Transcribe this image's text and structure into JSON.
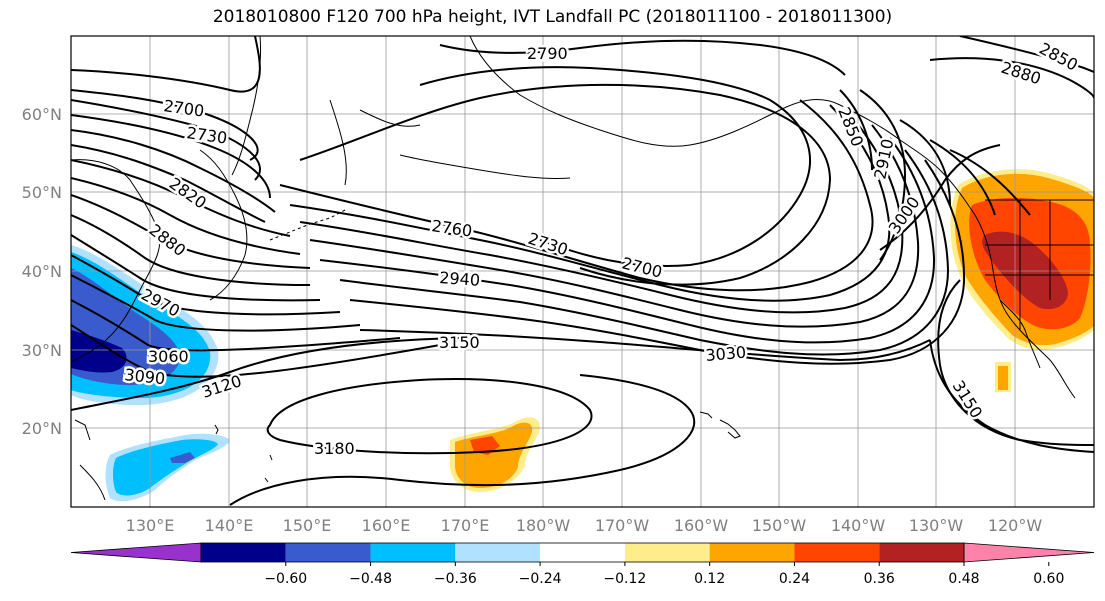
{
  "title": "2018010800 F120 700 hPa height, IVT Landfall PC (2018011100 - 2018011300)",
  "map": {
    "lat_ticks": [
      "60°N",
      "50°N",
      "40°N",
      "30°N",
      "20°N"
    ],
    "lon_ticks": [
      "130°E",
      "140°E",
      "150°E",
      "160°E",
      "170°E",
      "180°W",
      "170°W",
      "160°W",
      "150°W",
      "140°W",
      "130°W",
      "120°W"
    ]
  },
  "contour_labels": [
    {
      "id": "2790",
      "text": "2790"
    },
    {
      "id": "2880a",
      "text": "2880"
    },
    {
      "id": "2850a",
      "text": "2850"
    },
    {
      "id": "2700w",
      "text": "2700"
    },
    {
      "id": "2730w",
      "text": "2730"
    },
    {
      "id": "2820",
      "text": "2820"
    },
    {
      "id": "2880w",
      "text": "2880"
    },
    {
      "id": "2970",
      "text": "2970"
    },
    {
      "id": "3060",
      "text": "3060"
    },
    {
      "id": "3090",
      "text": "3090"
    },
    {
      "id": "3120",
      "text": "3120"
    },
    {
      "id": "2760",
      "text": "2760"
    },
    {
      "id": "2730c",
      "text": "2730"
    },
    {
      "id": "2700c",
      "text": "2700"
    },
    {
      "id": "2940",
      "text": "2940"
    },
    {
      "id": "3150c",
      "text": "3150"
    },
    {
      "id": "3030",
      "text": "3030"
    },
    {
      "id": "3180",
      "text": "3180"
    },
    {
      "id": "2850e",
      "text": "2850"
    },
    {
      "id": "2910",
      "text": "2910"
    },
    {
      "id": "3000",
      "text": "3000"
    },
    {
      "id": "3150e",
      "text": "3150"
    }
  ],
  "colorbar": {
    "levels": [
      "−0.60",
      "−0.48",
      "−0.36",
      "−0.24",
      "−0.12",
      "0.12",
      "0.24",
      "0.36",
      "0.48",
      "0.60"
    ],
    "colors": [
      "#9932cc",
      "#00008b",
      "#3a5bcd",
      "#00bfff",
      "#b0e2ff",
      "#ffffff",
      "#ffec8b",
      "#ffa500",
      "#ff4500",
      "#b22222",
      "#ff82ab"
    ]
  }
}
